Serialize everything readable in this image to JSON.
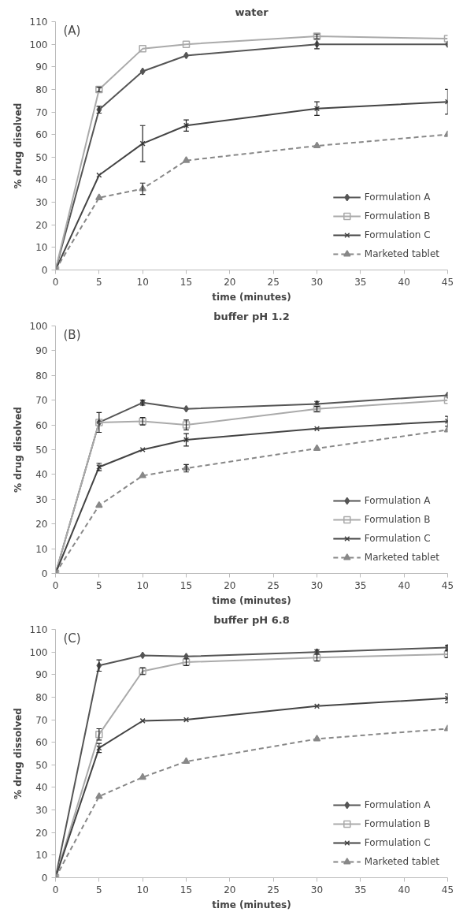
{
  "chart_data": [
    {
      "type": "line",
      "title": "water",
      "annotations": [
        "(A)"
      ],
      "xlabel": "time (minutes)",
      "ylabel": "% drug disolved",
      "x": [
        0,
        5,
        10,
        15,
        30,
        45
      ],
      "xlim": [
        0,
        45
      ],
      "xticks": [
        0,
        5,
        10,
        15,
        20,
        25,
        30,
        35,
        40,
        45
      ],
      "ylim": [
        0,
        110
      ],
      "yticks": [
        0,
        10,
        20,
        30,
        40,
        50,
        60,
        70,
        80,
        90,
        100,
        110
      ],
      "grid": false,
      "legend": "bottom right",
      "series": [
        {
          "name": "Formulation A",
          "color": "#555555",
          "marker": "diamond",
          "line_style": "solid",
          "values": [
            0,
            71,
            88,
            95,
            100,
            100
          ],
          "errors": [
            null,
            1.5,
            null,
            null,
            2,
            null
          ]
        },
        {
          "name": "Formulation B",
          "color": "#aaaaaa",
          "marker": "square",
          "line_style": "solid",
          "values": [
            0,
            80,
            98,
            100,
            103.5,
            102.5
          ],
          "errors": [
            null,
            1,
            null,
            null,
            1,
            null
          ]
        },
        {
          "name": "Formulation C",
          "color": "#444444",
          "marker": "cross",
          "line_style": "solid",
          "values": [
            0,
            42,
            56,
            64,
            71.5,
            74.5
          ],
          "errors": [
            null,
            null,
            8,
            2.5,
            3,
            5.5
          ]
        },
        {
          "name": "Marketed tablet",
          "color": "#888888",
          "marker": "triangle",
          "line_style": "dashed",
          "values": [
            0,
            32,
            36,
            48.5,
            55,
            60
          ],
          "errors": [
            null,
            null,
            2.5,
            null,
            null,
            null
          ]
        }
      ]
    },
    {
      "type": "line",
      "title": "buffer pH 1.2",
      "annotations": [
        "(B)"
      ],
      "xlabel": "time (minutes)",
      "ylabel": "% drug disolved",
      "x": [
        0,
        5,
        10,
        15,
        30,
        45
      ],
      "xlim": [
        0,
        45
      ],
      "xticks": [
        0,
        5,
        10,
        15,
        20,
        25,
        30,
        35,
        40,
        45
      ],
      "ylim": [
        0,
        100
      ],
      "yticks": [
        0,
        10,
        20,
        30,
        40,
        50,
        60,
        70,
        80,
        90,
        100
      ],
      "grid": false,
      "legend": "bottom right",
      "series": [
        {
          "name": "Formulation A",
          "color": "#555555",
          "marker": "diamond",
          "line_style": "solid",
          "values": [
            0,
            61,
            69,
            66.5,
            68.5,
            72
          ],
          "errors": [
            null,
            null,
            1,
            null,
            1,
            null
          ]
        },
        {
          "name": "Formulation B",
          "color": "#aaaaaa",
          "marker": "square",
          "line_style": "solid",
          "values": [
            0,
            61,
            61.5,
            60,
            66.5,
            70
          ],
          "errors": [
            null,
            4,
            1.5,
            2,
            1,
            null
          ]
        },
        {
          "name": "Formulation C",
          "color": "#444444",
          "marker": "cross",
          "line_style": "solid",
          "values": [
            0,
            43,
            50,
            54,
            58.5,
            61.5
          ],
          "errors": [
            null,
            1.5,
            null,
            2.5,
            null,
            2
          ]
        },
        {
          "name": "Marketed tablet",
          "color": "#888888",
          "marker": "triangle",
          "line_style": "dashed",
          "values": [
            0,
            27.5,
            39.5,
            42.5,
            50.5,
            58
          ],
          "errors": [
            null,
            null,
            null,
            1.5,
            null,
            null
          ]
        }
      ]
    },
    {
      "type": "line",
      "title": "buffer pH 6.8",
      "annotations": [
        "(C)"
      ],
      "xlabel": "time (minutes)",
      "ylabel": "% drug dissolved",
      "x": [
        0,
        5,
        10,
        15,
        30,
        45
      ],
      "xlim": [
        0,
        45
      ],
      "xticks": [
        0,
        5,
        10,
        15,
        20,
        25,
        30,
        35,
        40,
        45
      ],
      "ylim": [
        0,
        110
      ],
      "yticks": [
        0,
        10,
        20,
        30,
        40,
        50,
        60,
        70,
        80,
        90,
        100,
        110
      ],
      "grid": false,
      "legend": "bottom right",
      "series": [
        {
          "name": "Formulation A",
          "color": "#555555",
          "marker": "diamond",
          "line_style": "solid",
          "values": [
            0,
            94,
            98.5,
            98,
            100,
            102
          ],
          "errors": [
            null,
            2.5,
            null,
            null,
            1,
            1
          ]
        },
        {
          "name": "Formulation B",
          "color": "#aaaaaa",
          "marker": "square",
          "line_style": "solid",
          "values": [
            0,
            63.5,
            91.5,
            95.5,
            97.5,
            99
          ],
          "errors": [
            null,
            2.5,
            1.5,
            1.5,
            1.5,
            1.5
          ]
        },
        {
          "name": "Formulation C",
          "color": "#444444",
          "marker": "cross",
          "line_style": "solid",
          "values": [
            0,
            57.5,
            69.5,
            70,
            76,
            79.5
          ],
          "errors": [
            null,
            2,
            null,
            null,
            null,
            2
          ]
        },
        {
          "name": "Marketed tablet",
          "color": "#888888",
          "marker": "triangle",
          "line_style": "dashed",
          "values": [
            0,
            36,
            44.5,
            51.5,
            61.5,
            66
          ],
          "errors": [
            null,
            null,
            null,
            null,
            null,
            null
          ]
        }
      ]
    }
  ]
}
